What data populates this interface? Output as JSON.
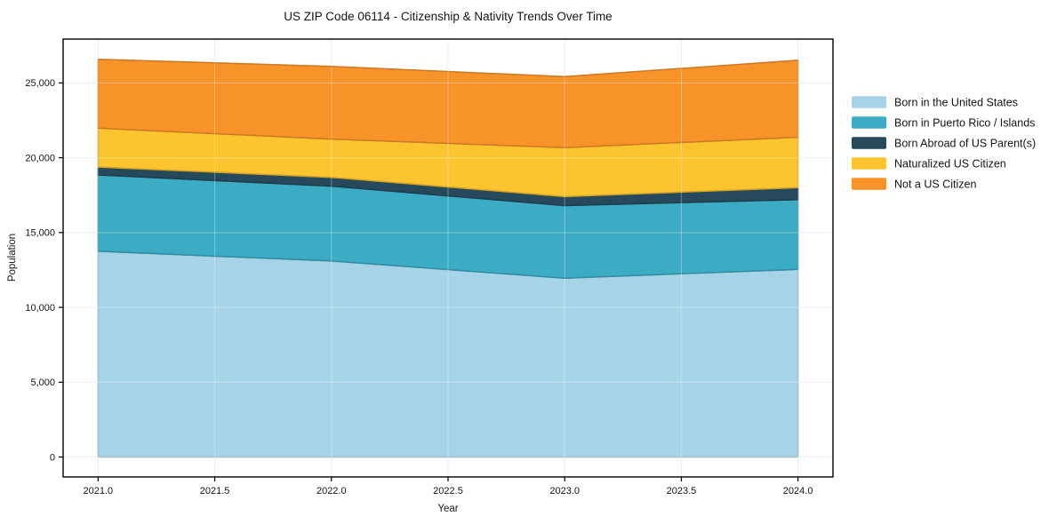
{
  "chart_data": {
    "type": "area",
    "stacked": true,
    "title": "US ZIP Code 06114 - Citizenship & Nativity Trends Over Time",
    "xlabel": "Year",
    "ylabel": "Population",
    "x": [
      2021,
      2022,
      2023,
      2024
    ],
    "series": [
      {
        "name": "Born in the United States",
        "color": "#A7D3E9",
        "values": [
          13750,
          13100,
          11950,
          12540
        ]
      },
      {
        "name": "Born in Puerto Rico / Islands",
        "color": "#3CABC4",
        "values": [
          5100,
          5000,
          4850,
          4660
        ]
      },
      {
        "name": "Born Abroad of US Parent(s)",
        "color": "#26495C",
        "values": [
          530,
          590,
          600,
          800
        ]
      },
      {
        "name": "Naturalized US Citizen",
        "color": "#FCC42F",
        "values": [
          2600,
          2560,
          3270,
          3370
        ]
      },
      {
        "name": "Not a US Citizen",
        "color": "#F89329",
        "values": [
          4600,
          4850,
          4750,
          5150
        ]
      }
    ],
    "xlim": [
      2020.85,
      2024.15
    ],
    "ylim": [
      -1330,
      27930
    ],
    "xticks": [
      2021.0,
      2021.5,
      2022.0,
      2022.5,
      2023.0,
      2023.5,
      2024.0
    ],
    "xtick_labels": [
      "2021.0",
      "2021.5",
      "2022.0",
      "2022.5",
      "2023.0",
      "2023.5",
      "2024.0"
    ],
    "yticks": [
      0,
      5000,
      10000,
      15000,
      20000,
      25000
    ],
    "ytick_labels": [
      "0",
      "5,000",
      "10,000",
      "15,000",
      "20,000",
      "25,000"
    ],
    "grid": true,
    "legend_position": "right",
    "colors": {
      "spine": "#000000",
      "gridline": "#E6E6EC",
      "text": "#151515"
    }
  }
}
